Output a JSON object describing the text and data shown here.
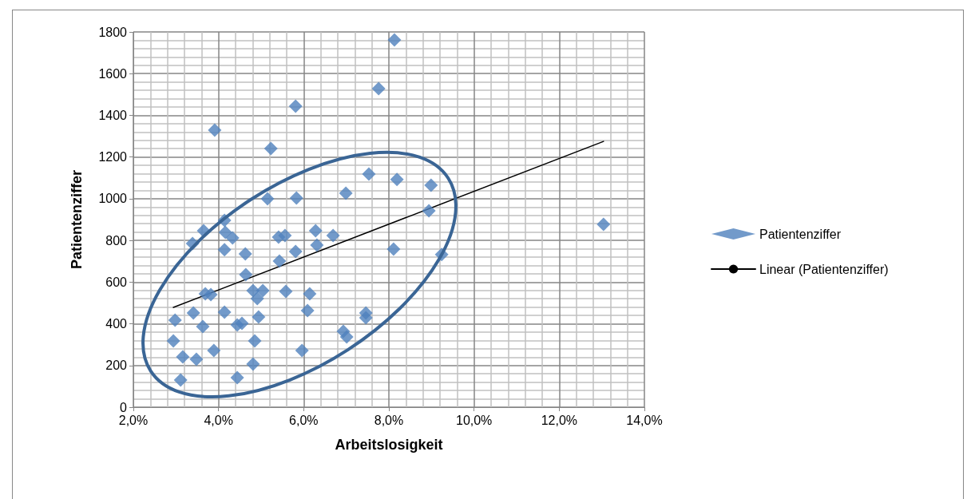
{
  "chart_data": {
    "type": "scatter",
    "xlabel": "Arbeitslosigkeit",
    "ylabel": "Patientenziffer",
    "xlim": [
      2,
      14
    ],
    "xticks": [
      {
        "value": 2,
        "label": "2,0%"
      },
      {
        "value": 4,
        "label": "4,0%"
      },
      {
        "value": 6,
        "label": "6,0%"
      },
      {
        "value": 8,
        "label": "8,0%"
      },
      {
        "value": 10,
        "label": "10,0%"
      },
      {
        "value": 12,
        "label": "12,0%"
      },
      {
        "value": 14,
        "label": "14,0%"
      }
    ],
    "ylim": [
      0,
      1800
    ],
    "yticks": [
      0,
      200,
      400,
      600,
      800,
      1000,
      1200,
      1400,
      1600,
      1800
    ],
    "grid": true,
    "legend": "right",
    "marker": "diamond",
    "series": [
      {
        "name": "Patientenziffer",
        "color": "#4f81bd",
        "x": [
          8.13,
          7.76,
          5.81,
          3.91,
          5.23,
          7.53,
          8.19,
          8.99,
          6.99,
          5.15,
          5.83,
          8.94,
          4.14,
          13.04,
          6.28,
          3.65,
          4.16,
          4.33,
          5.41,
          5.56,
          6.69,
          3.39,
          4.14,
          4.63,
          6.31,
          5.81,
          5.43,
          8.11,
          9.24,
          4.64,
          3.69,
          3.82,
          4.81,
          5.04,
          4.91,
          5.58,
          6.14,
          6.09,
          2.98,
          3.41,
          4.14,
          4.94,
          3.63,
          4.44,
          4.55,
          7.46,
          7.46,
          6.93,
          7.01,
          2.94,
          4.85,
          3.89,
          5.96,
          3.16,
          3.48,
          4.81,
          3.11,
          4.44
        ],
        "values": [
          1762,
          1528,
          1444,
          1329,
          1241,
          1118,
          1092,
          1065,
          1026,
          1000,
          1003,
          942,
          896,
          877,
          846,
          846,
          839,
          812,
          816,
          823,
          823,
          785,
          755,
          735,
          777,
          747,
          701,
          758,
          732,
          636,
          544,
          540,
          559,
          559,
          521,
          555,
          544,
          463,
          417,
          452,
          456,
          433,
          387,
          394,
          402,
          452,
          429,
          364,
          337,
          318,
          318,
          272,
          272,
          241,
          230,
          207,
          130,
          142
        ]
      },
      {
        "name": "Linear (Patientenziffer)",
        "type": "line",
        "color": "#000000",
        "marker": "none",
        "x": [
          2.94,
          13.04
        ],
        "values": [
          479,
          1275
        ]
      }
    ]
  }
}
